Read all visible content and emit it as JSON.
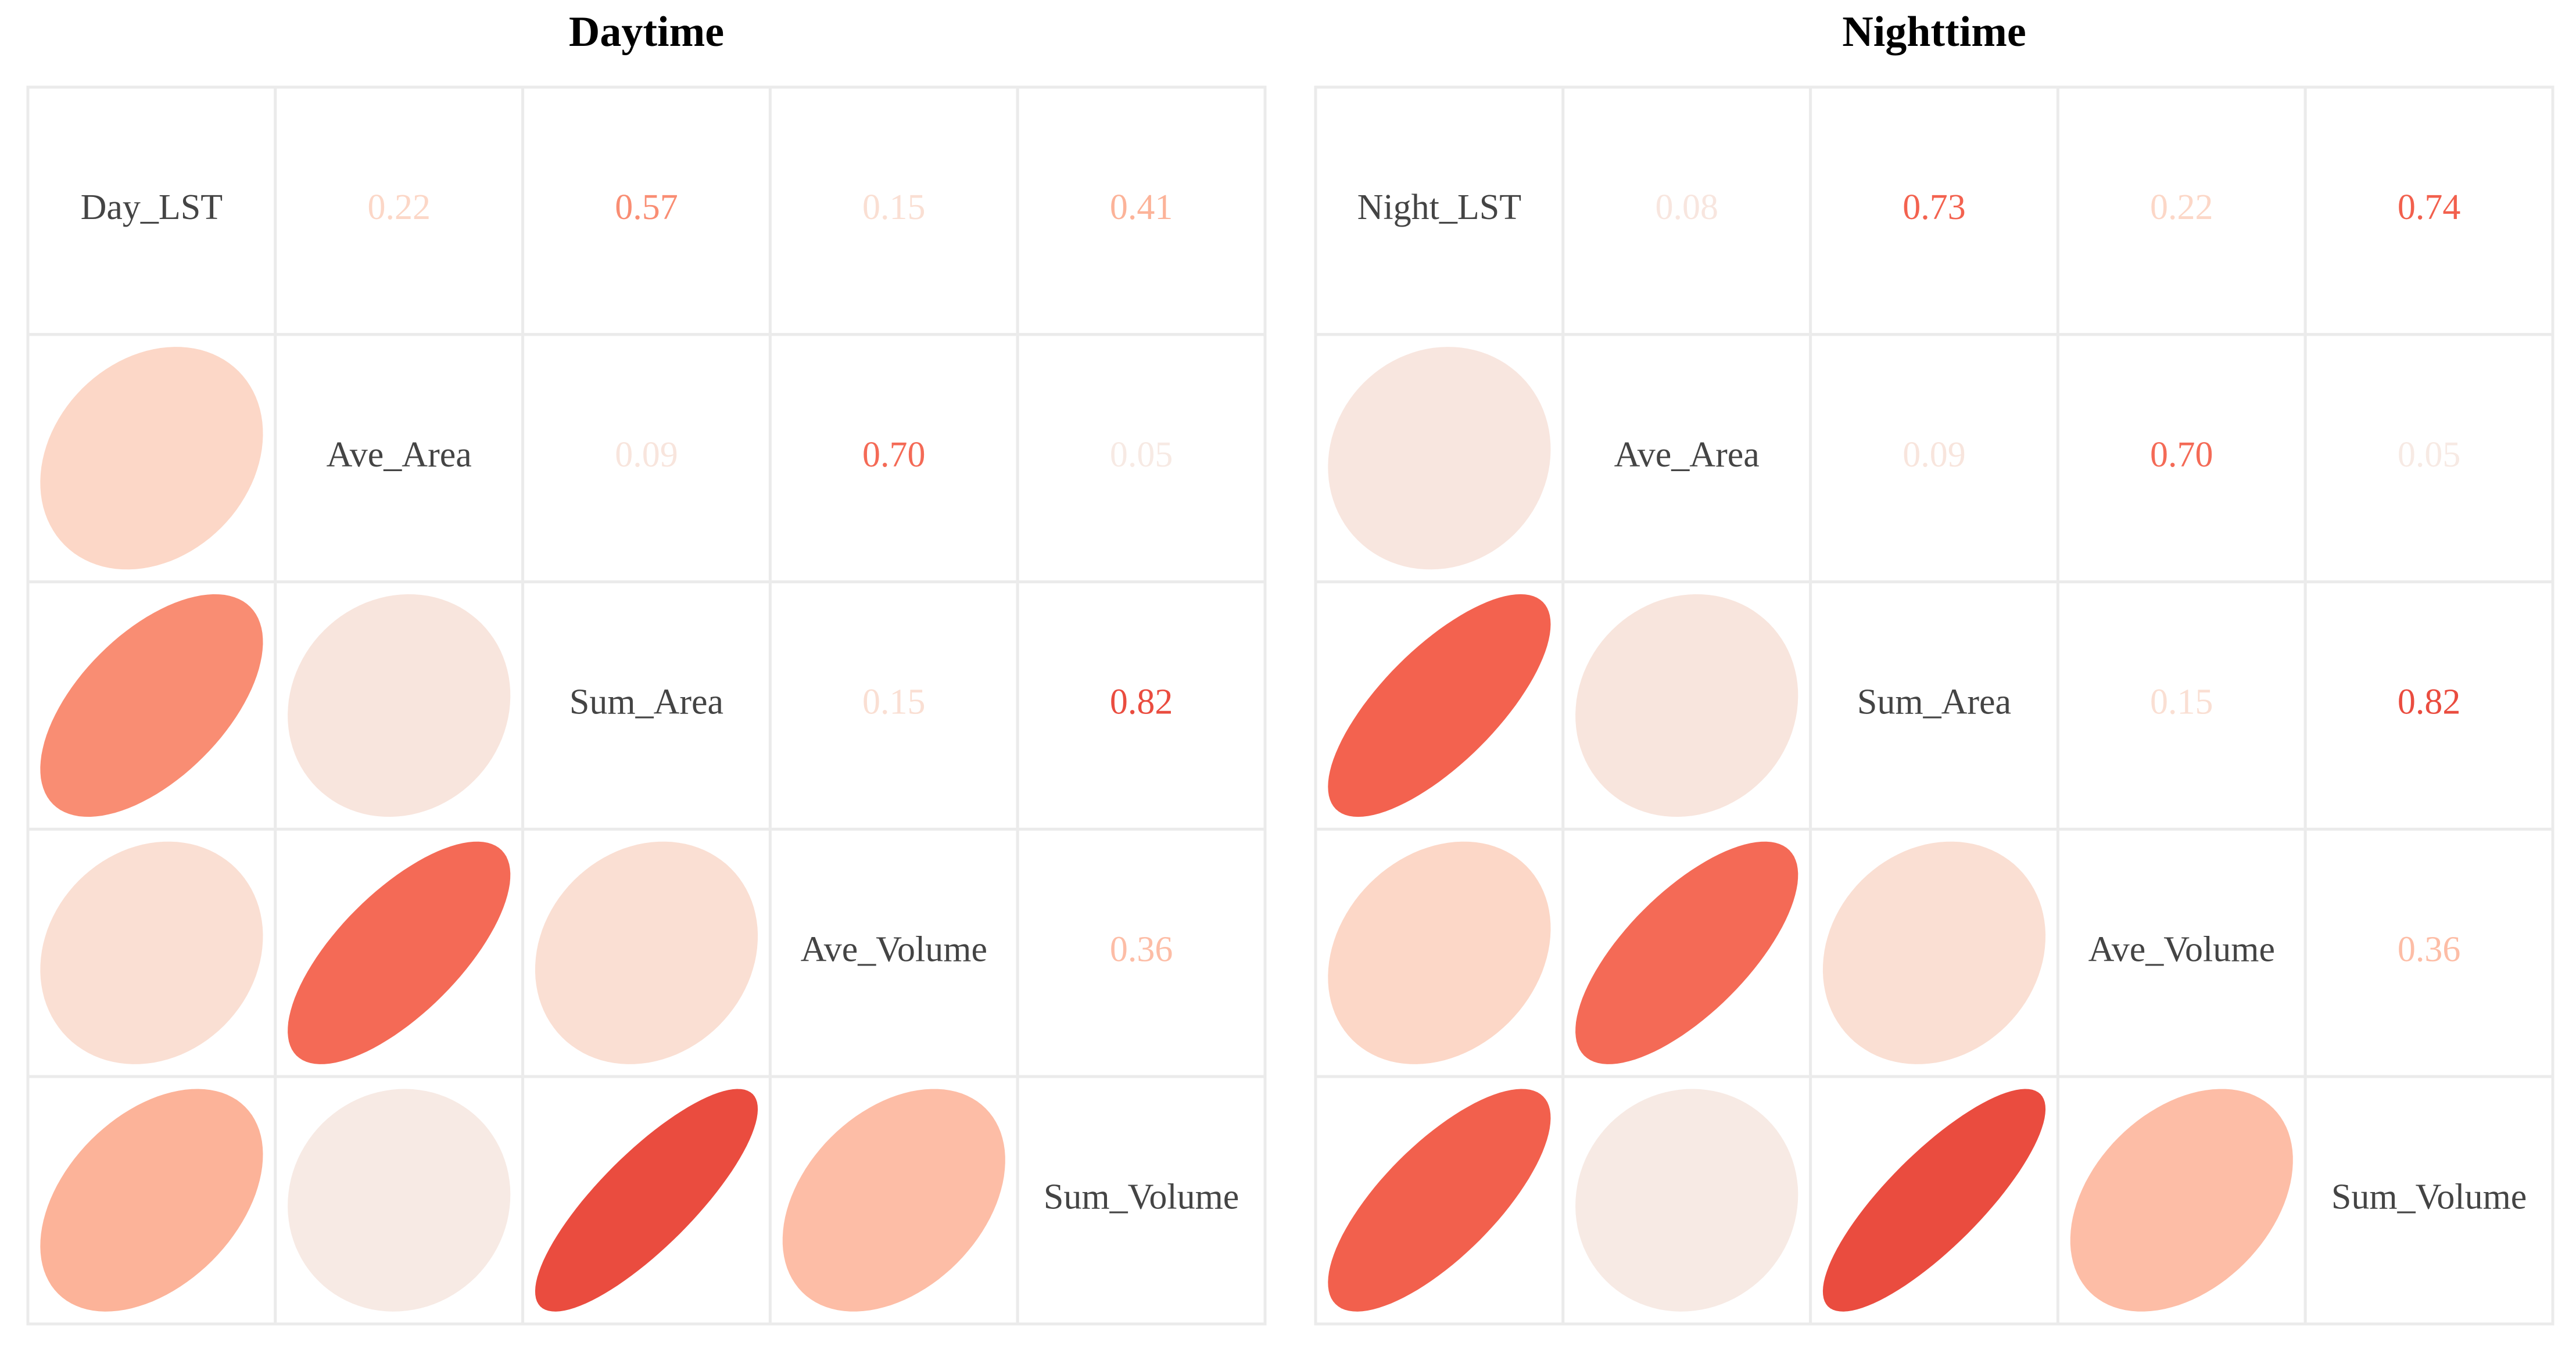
{
  "chart_data": [
    {
      "type": "corrgram",
      "title": "Daytime",
      "variables": [
        "Day_LST",
        "Ave_Area",
        "Sum_Area",
        "Ave_Volume",
        "Sum_Volume"
      ],
      "values": [
        [
          null,
          0.22,
          0.57,
          0.15,
          0.41
        ],
        [
          null,
          null,
          0.09,
          0.7,
          0.05
        ],
        [
          null,
          null,
          null,
          0.15,
          0.82
        ],
        [
          null,
          null,
          null,
          null,
          0.36
        ],
        [
          null,
          null,
          null,
          null,
          null
        ]
      ],
      "value_labels": [
        [
          null,
          "0.22",
          "0.57",
          "0.15",
          "0.41"
        ],
        [
          null,
          null,
          "0.09",
          "0.70",
          "0.05"
        ],
        [
          null,
          null,
          null,
          "0.15",
          "0.82"
        ],
        [
          null,
          null,
          null,
          null,
          "0.36"
        ],
        [
          null,
          null,
          null,
          null,
          null
        ]
      ],
      "colors": [
        "#f5efec",
        "#fdd4c2",
        "#fca082",
        "#f25d4b",
        "#d52221"
      ]
    },
    {
      "type": "corrgram",
      "title": "Nighttime",
      "variables": [
        "Night_LST",
        "Ave_Area",
        "Sum_Area",
        "Ave_Volume",
        "Sum_Volume"
      ],
      "values": [
        [
          null,
          0.08,
          0.73,
          0.22,
          0.74
        ],
        [
          null,
          null,
          0.09,
          0.7,
          0.05
        ],
        [
          null,
          null,
          null,
          0.15,
          0.82
        ],
        [
          null,
          null,
          null,
          null,
          0.36
        ],
        [
          null,
          null,
          null,
          null,
          null
        ]
      ],
      "value_labels": [
        [
          null,
          "0.08",
          "0.73",
          "0.22",
          "0.74"
        ],
        [
          null,
          null,
          "0.09",
          "0.70",
          "0.05"
        ],
        [
          null,
          null,
          null,
          "0.15",
          "0.82"
        ],
        [
          null,
          null,
          null,
          null,
          "0.36"
        ],
        [
          null,
          null,
          null,
          null,
          null
        ]
      ],
      "colors": [
        "#f5efec",
        "#fdd4c2",
        "#fca082",
        "#f25d4b",
        "#d52221"
      ]
    }
  ]
}
